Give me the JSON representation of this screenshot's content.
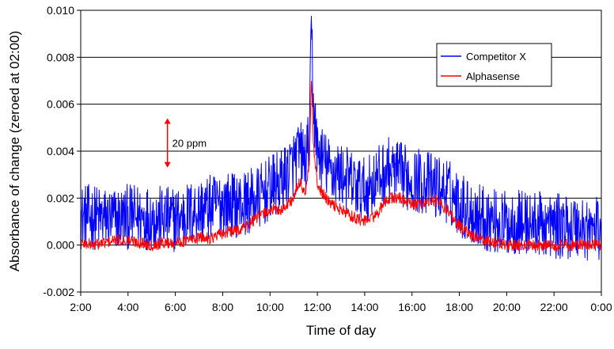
{
  "chart_data": {
    "type": "line",
    "title": "",
    "xlabel": "Time of day",
    "ylabel": "Absorbance of change (zeroed at 02:00)",
    "xlim": [
      "2:00",
      "0:00"
    ],
    "ylim": [
      -0.002,
      0.01
    ],
    "x_ticks": [
      "2:00",
      "4:00",
      "6:00",
      "8:00",
      "10:00",
      "12:00",
      "14:00",
      "16:00",
      "18:00",
      "20:00",
      "22:00",
      "0:00"
    ],
    "y_ticks": [
      "-0.002",
      "0.000",
      "0.002",
      "0.004",
      "0.006",
      "0.008",
      "0.010"
    ],
    "y_tick_values": [
      -0.002,
      0.0,
      0.002,
      0.004,
      0.006,
      0.008,
      0.01
    ],
    "grid": "horizontal",
    "legend_position": "top-right",
    "annotation": {
      "label": "20 ppm",
      "at_time": "5:40",
      "y_from": 0.0033,
      "y_to": 0.0054
    },
    "series": [
      {
        "name": "Competitor X",
        "color": "#0000ff",
        "x": [
          "2:00",
          "2:30",
          "3:00",
          "3:30",
          "4:00",
          "4:30",
          "5:00",
          "5:30",
          "6:00",
          "6:30",
          "7:00",
          "7:30",
          "8:00",
          "8:30",
          "9:00",
          "9:30",
          "10:00",
          "10:30",
          "11:00",
          "11:15",
          "11:30",
          "11:40",
          "11:45",
          "11:50",
          "12:00",
          "12:30",
          "13:00",
          "13:30",
          "14:00",
          "14:30",
          "15:00",
          "15:30",
          "16:00",
          "16:30",
          "17:00",
          "17:30",
          "18:00",
          "18:30",
          "19:00",
          "19:30",
          "20:00",
          "20:30",
          "21:00",
          "21:30",
          "22:00",
          "22:30",
          "23:00",
          "23:30",
          "0:00"
        ],
        "values": [
          0.0012,
          0.0012,
          0.0011,
          0.0011,
          0.0012,
          0.0012,
          0.0012,
          0.0011,
          0.0011,
          0.0013,
          0.0015,
          0.0016,
          0.0018,
          0.0017,
          0.0018,
          0.002,
          0.0024,
          0.0027,
          0.0035,
          0.004,
          0.0035,
          0.0045,
          0.0095,
          0.006,
          0.004,
          0.0032,
          0.003,
          0.0026,
          0.0023,
          0.0028,
          0.0032,
          0.003,
          0.0028,
          0.0027,
          0.0025,
          0.0023,
          0.0018,
          0.0014,
          0.0012,
          0.001,
          0.0009,
          0.001,
          0.0009,
          0.0009,
          0.0008,
          0.0008,
          0.0008,
          0.0007,
          0.0007
        ],
        "noise_amplitude": 0.0014
      },
      {
        "name": "Alphasense",
        "color": "#ff0000",
        "x": [
          "2:00",
          "2:30",
          "3:00",
          "3:30",
          "4:00",
          "4:30",
          "5:00",
          "5:30",
          "6:00",
          "6:30",
          "7:00",
          "7:30",
          "8:00",
          "8:30",
          "9:00",
          "9:30",
          "10:00",
          "10:30",
          "11:00",
          "11:15",
          "11:30",
          "11:40",
          "11:45",
          "11:50",
          "12:00",
          "12:30",
          "13:00",
          "13:30",
          "14:00",
          "14:30",
          "15:00",
          "15:30",
          "16:00",
          "16:30",
          "17:00",
          "17:30",
          "18:00",
          "18:30",
          "19:00",
          "19:30",
          "20:00",
          "20:30",
          "21:00",
          "21:30",
          "22:00",
          "22:30",
          "23:00",
          "23:30",
          "0:00"
        ],
        "values": [
          0.0001,
          0.0,
          0.0001,
          0.0002,
          0.0002,
          0.0001,
          0.0,
          0.0001,
          0.0001,
          0.0002,
          0.0003,
          0.0003,
          0.0005,
          0.0006,
          0.0008,
          0.0012,
          0.0015,
          0.0015,
          0.002,
          0.0027,
          0.0022,
          0.0035,
          0.0072,
          0.0042,
          0.0025,
          0.0018,
          0.0015,
          0.0012,
          0.001,
          0.0013,
          0.002,
          0.002,
          0.0017,
          0.0018,
          0.0019,
          0.0015,
          0.0008,
          0.0004,
          0.0002,
          0.0001,
          0.0,
          0.0,
          0.0,
          0.0,
          0.0,
          0.0,
          0.0,
          0.0,
          0.0
        ],
        "noise_amplitude": 0.00025
      }
    ]
  }
}
